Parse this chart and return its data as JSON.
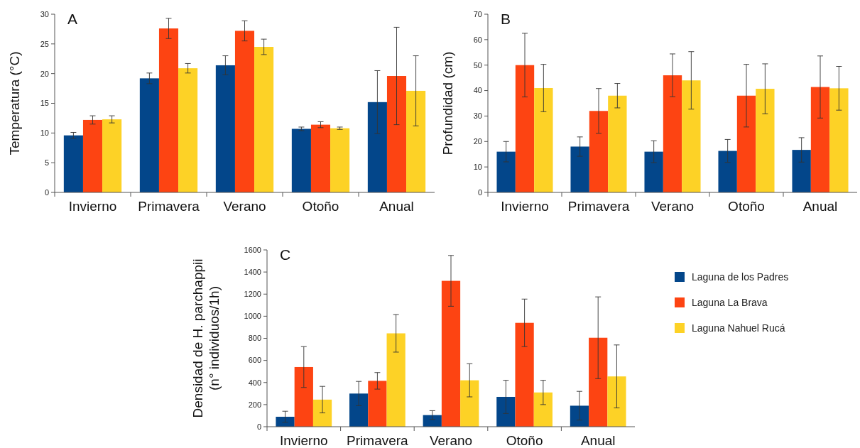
{
  "chart_data": [
    {
      "type": "bar",
      "title": "A",
      "ylabel": "Temperatura (°C)",
      "categories": [
        "Invierno",
        "Primavera",
        "Verano",
        "Otoño",
        "Anual"
      ],
      "ylim": [
        0,
        30
      ],
      "yticks": [
        0,
        5,
        10,
        15,
        20,
        25,
        30
      ],
      "grid": false,
      "legend": false,
      "series": [
        {
          "color": "#03468a",
          "values": [
            9.6,
            19.2,
            21.4,
            10.7,
            15.2
          ],
          "errors": [
            0.5,
            0.9,
            1.6,
            0.3,
            5.3
          ]
        },
        {
          "color": "#fd4412",
          "values": [
            12.2,
            27.6,
            27.2,
            11.4,
            19.6
          ],
          "errors": [
            0.7,
            1.7,
            1.7,
            0.5,
            8.2
          ]
        },
        {
          "color": "#fdd226",
          "values": [
            12.3,
            20.9,
            24.5,
            10.8,
            17.1
          ],
          "errors": [
            0.6,
            0.8,
            1.3,
            0.2,
            5.9
          ]
        }
      ]
    },
    {
      "type": "bar",
      "title": "B",
      "ylabel": "Profundidad (cm)",
      "categories": [
        "Invierno",
        "Primavera",
        "Verano",
        "Otoño",
        "Anual"
      ],
      "ylim": [
        0,
        70
      ],
      "yticks": [
        0,
        10,
        20,
        30,
        40,
        50,
        60,
        70
      ],
      "grid": false,
      "legend": false,
      "series": [
        {
          "color": "#03468a",
          "values": [
            16,
            18,
            16,
            16.3,
            16.7
          ],
          "errors": [
            4,
            3.8,
            4.3,
            4.5,
            4.8
          ]
        },
        {
          "color": "#fd4412",
          "values": [
            50,
            32,
            46,
            38,
            41.4
          ],
          "errors": [
            12.5,
            8.8,
            8.4,
            12.3,
            12.2
          ]
        },
        {
          "color": "#fdd226",
          "values": [
            41,
            38,
            44,
            40.7,
            40.9
          ],
          "errors": [
            9.3,
            4.8,
            11.3,
            9.8,
            8.6
          ]
        }
      ]
    },
    {
      "type": "bar",
      "title": "C",
      "ylabel": "Densidad de H. parchappii\n(n° individuos/1h)",
      "categories": [
        "Invierno",
        "Primavera",
        "Verano",
        "Otoño",
        "Anual"
      ],
      "ylim": [
        0,
        1600
      ],
      "yticks": [
        0,
        200,
        400,
        600,
        800,
        1000,
        1200,
        1400,
        1600
      ],
      "grid": false,
      "legend": "right",
      "series": [
        {
          "name": "Laguna de los Padres",
          "color": "#03468a",
          "values": [
            90,
            300,
            105,
            270,
            190
          ],
          "errors": [
            50,
            110,
            40,
            150,
            130
          ]
        },
        {
          "name": "Laguna La Brava",
          "color": "#fd4412",
          "values": [
            540,
            415,
            1320,
            940,
            805
          ],
          "errors": [
            185,
            75,
            230,
            215,
            370
          ]
        },
        {
          "name": "Laguna Nahuel Rucá",
          "color": "#fdd226",
          "values": [
            245,
            845,
            420,
            310,
            455
          ],
          "errors": [
            120,
            170,
            150,
            110,
            285
          ]
        }
      ]
    }
  ]
}
